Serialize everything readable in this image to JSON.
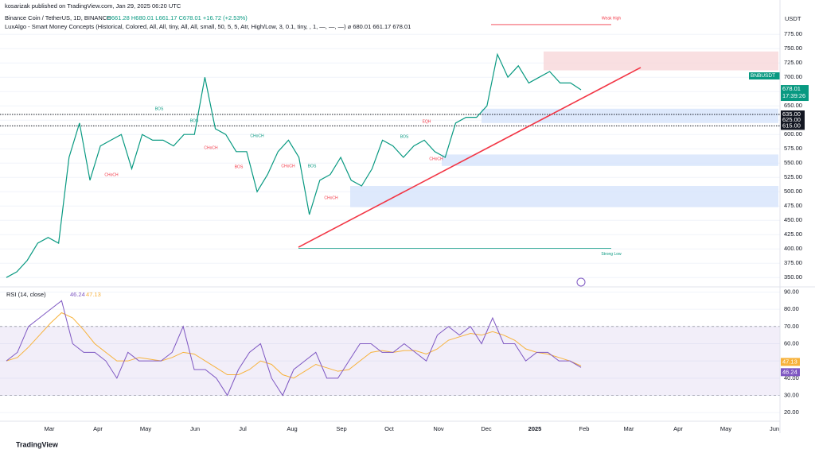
{
  "header": {
    "publisher": "kosarizak published on TradingView.com, Jan 29, 2025 06:20 UTC",
    "symbol": "Binance Coin / TetherUS, 1D, BINANCE",
    "ohlc": "O661.28 H680.01 L661.17 C678.01 +16.72 (+2.53%)",
    "indicator": "LuxAlgo - Smart Money Concepts (Historical, Colored, All, All, tiny, All, All, small, 50, 5, 5, Atr, High/Low, 3, 0.1, tiny, , 1, —, —, —) ⌀ 680.01 661.17 678.01",
    "currency": "USDT",
    "brand": "TradingView"
  },
  "chart_data": {
    "type": "line",
    "price": {
      "name": "BNBUSDT",
      "color": "#089981",
      "ylim": [
        335,
        835
      ],
      "yticks": [
        {
          "value": 350,
          "label": "350.00"
        },
        {
          "value": 375,
          "label": "375.00"
        },
        {
          "value": 400,
          "label": "400.00"
        },
        {
          "value": 425,
          "label": "425.00"
        },
        {
          "value": 450,
          "label": "450.00"
        },
        {
          "value": 475,
          "label": "475.00"
        },
        {
          "value": 500,
          "label": "500.00"
        },
        {
          "value": 525,
          "label": "525.00"
        },
        {
          "value": 550,
          "label": "550.00"
        },
        {
          "value": 575,
          "label": "575.00"
        },
        {
          "value": 600,
          "label": "600.00"
        },
        {
          "value": 625,
          "label": "625.00"
        },
        {
          "value": 650,
          "label": "650.00"
        },
        {
          "value": 675,
          "label": "675.00"
        },
        {
          "value": 700,
          "label": "700.00"
        },
        {
          "value": 725,
          "label": "725.00"
        },
        {
          "value": 750,
          "label": "750.00"
        },
        {
          "value": 775,
          "label": "775.00"
        }
      ],
      "values": [
        350,
        360,
        380,
        410,
        420,
        410,
        560,
        620,
        520,
        580,
        590,
        600,
        540,
        600,
        590,
        590,
        580,
        600,
        600,
        700,
        610,
        600,
        570,
        570,
        500,
        530,
        570,
        590,
        560,
        460,
        520,
        530,
        560,
        520,
        510,
        540,
        590,
        580,
        560,
        580,
        590,
        570,
        560,
        620,
        630,
        630,
        650,
        740,
        700,
        720,
        690,
        700,
        710,
        690,
        690,
        678.01
      ],
      "last": {
        "value": 678.01,
        "label": "678.01"
      },
      "countdown": "17:39:26",
      "levels": [
        {
          "value": 635,
          "label": "635.00"
        },
        {
          "value": 625,
          "label": "625.00"
        },
        {
          "value": 615,
          "label": "615.00"
        }
      ],
      "zones": [
        {
          "top": 745,
          "bottom": 712,
          "color": "#f8d7da"
        },
        {
          "top": 645,
          "bottom": 620,
          "color": "#d6e4fb"
        },
        {
          "top": 565,
          "bottom": 545,
          "color": "#d6e4fb"
        },
        {
          "top": 510,
          "bottom": 473,
          "color": "#d6e4fb"
        }
      ],
      "trendline": [
        403,
        717
      ],
      "weak_high": {
        "value": 792,
        "label": "Weak High"
      },
      "strong_low": {
        "value": 401,
        "label": "Strong Low"
      },
      "smc_labels": [
        "BOS",
        "CHoCH",
        "CHoCH",
        "BOS",
        "BOS",
        "CHoCH",
        "BOS",
        "CHoCH",
        "CHoCH",
        "BOS",
        "EQH",
        "CHoCH"
      ]
    },
    "rsi": {
      "name": "RSI (14, close)",
      "color": "#7e57c2",
      "ma_color": "#f7b23b",
      "ylim": [
        15,
        93
      ],
      "yticks": [
        {
          "value": 20,
          "label": "20.00"
        },
        {
          "value": 30,
          "label": "30.00"
        },
        {
          "value": 40,
          "label": "40.00"
        },
        {
          "value": 50,
          "label": "50.00"
        },
        {
          "value": 60,
          "label": "60.00"
        },
        {
          "value": 70,
          "label": "70.00"
        },
        {
          "value": 80,
          "label": "80.00"
        },
        {
          "value": 90,
          "label": "90.00"
        }
      ],
      "band": [
        30,
        70
      ],
      "values": [
        50,
        55,
        70,
        75,
        80,
        85,
        60,
        55,
        55,
        50,
        40,
        55,
        50,
        50,
        50,
        55,
        70,
        45,
        45,
        40,
        30,
        45,
        55,
        60,
        40,
        30,
        45,
        50,
        55,
        40,
        40,
        50,
        60,
        60,
        55,
        55,
        60,
        55,
        50,
        65,
        70,
        65,
        70,
        60,
        75,
        60,
        60,
        50,
        55,
        55,
        50,
        50,
        46.24
      ],
      "ma": [
        50,
        52,
        58,
        65,
        72,
        78,
        75,
        68,
        60,
        55,
        50,
        50,
        52,
        51,
        50,
        52,
        55,
        54,
        50,
        46,
        42,
        42,
        45,
        50,
        48,
        42,
        40,
        44,
        48,
        46,
        44,
        45,
        50,
        55,
        56,
        55,
        56,
        56,
        54,
        57,
        62,
        64,
        66,
        65,
        67,
        65,
        62,
        57,
        55,
        54,
        52,
        50,
        47.13
      ],
      "last": {
        "value": 46.24,
        "label": "46.24"
      },
      "ma_last": {
        "value": 47.13,
        "label": "47.13"
      }
    },
    "months": [
      "Mar",
      "Apr",
      "May",
      "Jun",
      "Jul",
      "Aug",
      "Sep",
      "Oct",
      "Nov",
      "Dec",
      "2025",
      "Feb",
      "Mar",
      "Apr",
      "May",
      "Jun"
    ]
  }
}
